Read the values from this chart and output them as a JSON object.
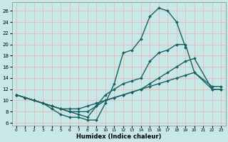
{
  "xlabel": "Humidex (Indice chaleur)",
  "xlim": [
    -0.5,
    23.5
  ],
  "ylim": [
    5.5,
    27.5
  ],
  "xticks": [
    0,
    1,
    2,
    3,
    4,
    5,
    6,
    7,
    8,
    9,
    10,
    11,
    12,
    13,
    14,
    15,
    16,
    17,
    18,
    19,
    20,
    21,
    22,
    23
  ],
  "yticks": [
    6,
    8,
    10,
    12,
    14,
    16,
    18,
    20,
    22,
    24,
    26
  ],
  "bg_color": "#c8e8e8",
  "grid_color": "#e8b8b8",
  "line_color": "#1a6060",
  "curves": [
    {
      "x": [
        0,
        1,
        2,
        3,
        4,
        5,
        6,
        7,
        8,
        9,
        10,
        11,
        12,
        13,
        14,
        15,
        16,
        17,
        18,
        19
      ],
      "y": [
        11,
        10.5,
        10,
        9.5,
        8.5,
        7.5,
        7.0,
        7.0,
        6.5,
        6.5,
        9.5,
        13,
        18.5,
        19,
        21,
        25,
        26.5,
        26,
        24,
        19.5
      ],
      "marker": "D",
      "markersize": 2.0,
      "linewidth": 1.0
    },
    {
      "x": [
        0,
        1,
        2,
        3,
        4,
        5,
        6,
        7,
        8,
        9,
        10,
        11,
        12,
        13,
        14,
        15,
        16,
        17,
        18,
        19,
        20,
        22,
        23
      ],
      "y": [
        11,
        10.5,
        10,
        9.5,
        9,
        8.5,
        8,
        7.5,
        7,
        9,
        11,
        12,
        13,
        13.5,
        14,
        17,
        18.5,
        19,
        20,
        20,
        15,
        12,
        12
      ],
      "marker": "D",
      "markersize": 2.0,
      "linewidth": 1.0
    },
    {
      "x": [
        0,
        1,
        2,
        3,
        4,
        5,
        6,
        7,
        8,
        9,
        10,
        11,
        12,
        13,
        14,
        15,
        16,
        17,
        18,
        19,
        20,
        22,
        23
      ],
      "y": [
        11,
        10.5,
        10,
        9.5,
        9,
        8.5,
        8,
        8,
        8,
        9,
        10,
        10.5,
        11,
        11.5,
        12,
        13,
        14,
        15,
        16,
        17,
        17.5,
        12,
        12
      ],
      "marker": "D",
      "markersize": 2.0,
      "linewidth": 1.0
    },
    {
      "x": [
        0,
        1,
        2,
        3,
        4,
        5,
        6,
        7,
        8,
        9,
        10,
        11,
        12,
        13,
        14,
        15,
        16,
        17,
        18,
        19,
        20,
        22,
        23
      ],
      "y": [
        11,
        10.5,
        10,
        9.5,
        9,
        8.5,
        8.5,
        8.5,
        9,
        9.5,
        10,
        10.5,
        11,
        11.5,
        12,
        12.5,
        13,
        13.5,
        14,
        14.5,
        15,
        12.5,
        12.5
      ],
      "marker": "D",
      "markersize": 2.0,
      "linewidth": 1.0
    }
  ]
}
